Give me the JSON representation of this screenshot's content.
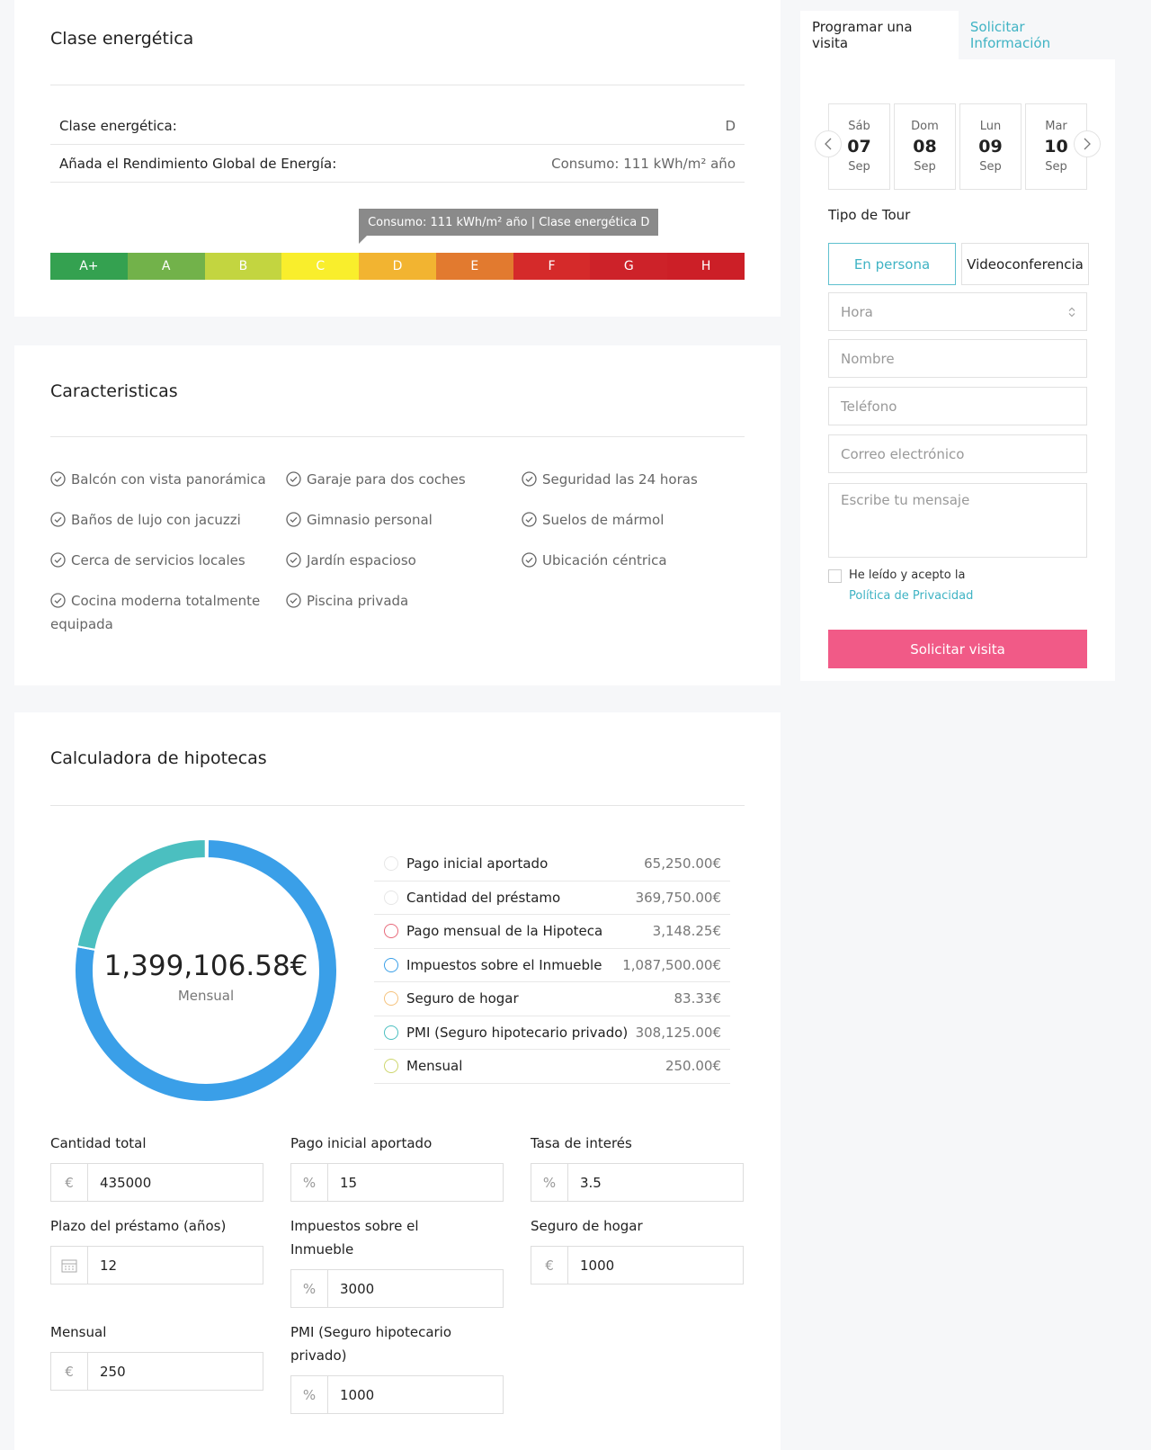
{
  "energy": {
    "title": "Clase energética",
    "rows": [
      {
        "label": "Clase energética:",
        "value": "D"
      },
      {
        "label": "Añada el Rendimiento Global de Energía:",
        "value": "Consumo: 111 kWh/m² año"
      }
    ],
    "tooltip": "Consumo: 111 kWh/m² año | Clase energética D",
    "classes": [
      {
        "label": "A+",
        "color": "#34a150"
      },
      {
        "label": "A",
        "color": "#72b24a"
      },
      {
        "label": "B",
        "color": "#c3d540"
      },
      {
        "label": "C",
        "color": "#f9ee2c"
      },
      {
        "label": "D",
        "color": "#f2b431"
      },
      {
        "label": "E",
        "color": "#e27a2f"
      },
      {
        "label": "F",
        "color": "#d52a2a"
      },
      {
        "label": "G",
        "color": "#cd2229"
      },
      {
        "label": "H",
        "color": "#cc1f27"
      }
    ]
  },
  "features": {
    "title": "Caracteristicas",
    "items": [
      "Balcón con vista panorámica",
      "Baños de lujo con jacuzzi",
      "Cerca de servicios locales",
      "Cocina moderna totalmente equipada",
      "Garaje para dos coches",
      "Gimnasio personal",
      "Jardín espacioso",
      "Piscina privada",
      "Seguridad las 24 horas",
      "Suelos de mármol",
      "Ubicación céntrica"
    ]
  },
  "mortgage": {
    "title": "Calculadora de hipotecas",
    "total": "1,399,106.58€",
    "total_caption": "Mensual",
    "breakdown": {
      "labels": [
        "Pago inicial aportado",
        "Cantidad del préstamo",
        "Pago mensual de la Hipoteca",
        "Impuestos sobre el Inmueble",
        "Seguro de hogar",
        "PMI (Seguro hipotecario privado)",
        "Mensual"
      ],
      "values": [
        65250,
        369750,
        3148.25,
        1087500,
        83.33,
        308125,
        250
      ],
      "value_labels": [
        "65,250.00€",
        "369,750.00€",
        "3,148.25€",
        "1,087,500.00€",
        "83.33€",
        "308,125.00€",
        "250.00€"
      ],
      "colors": [
        "#e6e6e6",
        "#e6e6e6",
        "#e8697a",
        "#3a9fe8",
        "#f5c27c",
        "#4bbfc0",
        "#cdd66c"
      ],
      "in_chart": [
        false,
        false,
        true,
        true,
        true,
        true,
        true
      ]
    },
    "fields": [
      {
        "label": "Cantidad total",
        "prefix": "€",
        "value": "435000"
      },
      {
        "label": "Pago inicial aportado",
        "prefix": "%",
        "value": "15"
      },
      {
        "label": "Tasa de interés",
        "prefix": "%",
        "value": "3.5"
      },
      {
        "label": "Plazo del préstamo (años)",
        "value": "12"
      },
      {
        "label": "Impuestos sobre el Inmueble",
        "prefix": "%",
        "value": "3000"
      },
      {
        "label": "Seguro de hogar",
        "prefix": "€",
        "value": "1000"
      },
      {
        "label": "Mensual",
        "prefix": "€",
        "value": "250"
      },
      {
        "label": "PMI (Seguro hipotecario privado)",
        "prefix": "%",
        "value": "1000"
      }
    ]
  },
  "sidebar": {
    "tabs": [
      "Programar una visita",
      "Solicitar Información"
    ],
    "days": [
      {
        "weekday": "Sáb",
        "day": "07",
        "month": "Sep"
      },
      {
        "weekday": "Dom",
        "day": "08",
        "month": "Sep"
      },
      {
        "weekday": "Lun",
        "day": "09",
        "month": "Sep"
      },
      {
        "weekday": "Mar",
        "day": "10",
        "month": "Sep"
      }
    ],
    "tour_label": "Tipo de Tour",
    "tour_options": [
      "En persona",
      "Videoconferencia"
    ],
    "hour_placeholder": "Hora",
    "placeholders": [
      "Nombre",
      "Teléfono",
      "Correo electrónico"
    ],
    "message_placeholder": "Escribe tu mensaje",
    "consent": "He leído y acepto la",
    "privacy_link": "Política de Privacidad",
    "submit": "Solicitar visita"
  }
}
